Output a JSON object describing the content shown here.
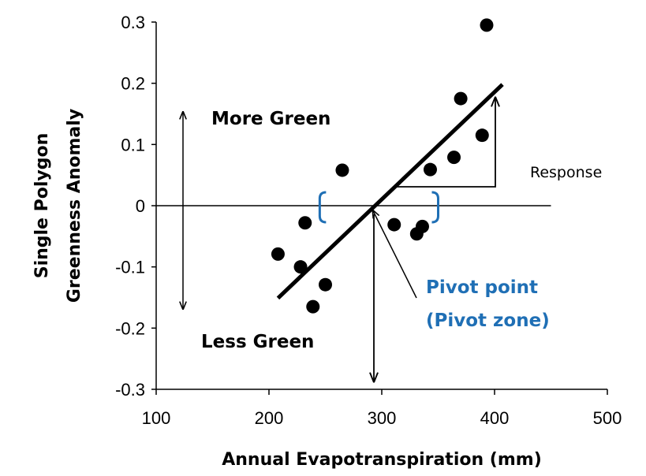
{
  "chart_data": {
    "type": "scatter",
    "title": "",
    "xlabel": "Annual Evapotranspiration (mm)",
    "ylabel": [
      "Single Polygon",
      "Greenness Anomaly"
    ],
    "xlim": [
      100,
      500
    ],
    "ylim": [
      -0.3,
      0.3
    ],
    "xticks": [
      100,
      200,
      300,
      400,
      500
    ],
    "yticks": [
      0.3,
      0.2,
      0.1,
      0,
      -0.1,
      -0.2,
      -0.3
    ],
    "ytick_labels": [
      "0.3",
      "0.2",
      "0.1",
      "0",
      "-0.1",
      "-0.2",
      "-0.3"
    ],
    "grid": false,
    "points": [
      {
        "x": 208,
        "y": -0.079
      },
      {
        "x": 228,
        "y": -0.1
      },
      {
        "x": 232,
        "y": -0.028
      },
      {
        "x": 239,
        "y": -0.165
      },
      {
        "x": 250,
        "y": -0.129
      },
      {
        "x": 265,
        "y": 0.058
      },
      {
        "x": 311,
        "y": -0.031
      },
      {
        "x": 331,
        "y": -0.046
      },
      {
        "x": 336,
        "y": -0.034
      },
      {
        "x": 343,
        "y": 0.059
      },
      {
        "x": 364,
        "y": 0.079
      },
      {
        "x": 370,
        "y": 0.175
      },
      {
        "x": 389,
        "y": 0.115
      },
      {
        "x": 393,
        "y": 0.295
      }
    ],
    "trend_line": {
      "x": [
        208,
        407
      ],
      "y": [
        -0.151,
        0.198
      ]
    },
    "zero_line": {
      "x": [
        100,
        450
      ],
      "y": 0
    },
    "pivot_point": {
      "x": 290,
      "y": 0
    },
    "pivot_zone": {
      "x": [
        245,
        350
      ]
    },
    "annotations": {
      "more_green": "More Green",
      "less_green": "Less Green",
      "response": "Response",
      "pivot_point": "Pivot point",
      "pivot_zone": "(Pivot zone)"
    },
    "colors": {
      "points": "#000000",
      "pivot": "#1f6fb5"
    }
  }
}
